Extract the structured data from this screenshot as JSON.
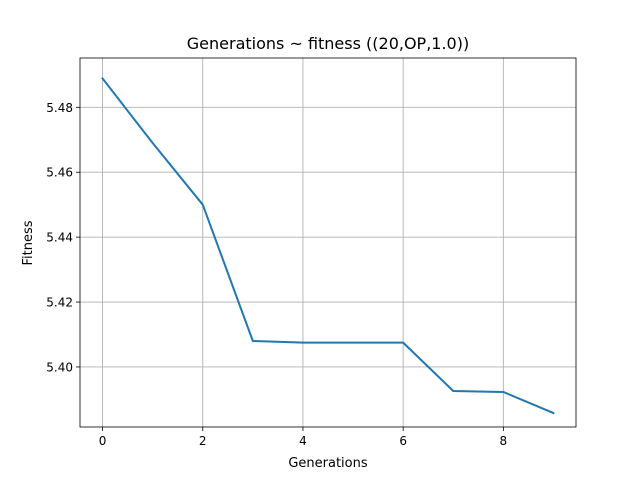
{
  "chart_data": {
    "type": "line",
    "title": "Generations ~ fitness ((20,OP,1.0))",
    "xlabel": "Generations",
    "ylabel": "Fitness",
    "xlim": [
      -0.45,
      9.45
    ],
    "ylim": [
      5.3815,
      5.4952
    ],
    "xticks": [
      0,
      2,
      4,
      6,
      8
    ],
    "yticks": [
      5.4,
      5.42,
      5.44,
      5.46,
      5.48
    ],
    "xtick_labels": [
      "0",
      "2",
      "4",
      "6",
      "8"
    ],
    "ytick_labels": [
      "5.40",
      "5.42",
      "5.44",
      "5.46",
      "5.48"
    ],
    "grid": true,
    "series": [
      {
        "color": "#1f77b4",
        "x": [
          0,
          1,
          2,
          3,
          4,
          5,
          6,
          7,
          8,
          9
        ],
        "values": [
          5.4889,
          5.469,
          5.45,
          5.408,
          5.4075,
          5.4075,
          5.4075,
          5.3926,
          5.3923,
          5.3858
        ]
      }
    ]
  }
}
